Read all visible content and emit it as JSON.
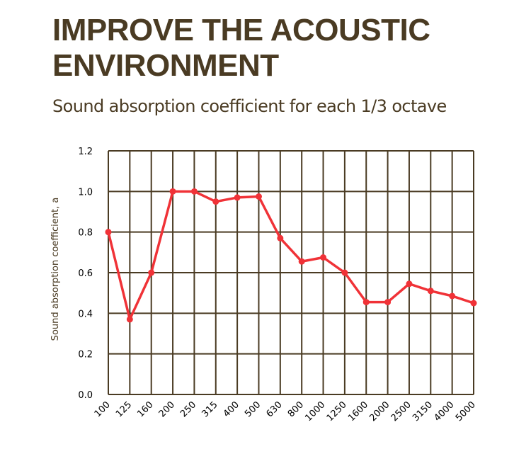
{
  "header": {
    "title_line1": "IMPROVE THE ACOUSTIC",
    "title_line2": "ENVIRONMENT",
    "subtitle": "Sound absorption coefficient for each 1/3 octave"
  },
  "chart_data": {
    "type": "line",
    "ylabel": "Sound absorption coefficient, a",
    "xlabel": "",
    "categories": [
      "100",
      "125",
      "160",
      "200",
      "250",
      "315",
      "400",
      "500",
      "630",
      "800",
      "1000",
      "1250",
      "1600",
      "2000",
      "2500",
      "3150",
      "4000",
      "5000"
    ],
    "series": [
      {
        "values": [
          0.8,
          0.37,
          0.6,
          1.0,
          1.0,
          0.95,
          0.97,
          0.975,
          0.77,
          0.655,
          0.675,
          0.6,
          0.455,
          0.455,
          0.545,
          0.51,
          0.485,
          0.45
        ]
      }
    ],
    "ylim": [
      0,
      1.2
    ],
    "yticks": [
      "0.0",
      "0.2",
      "0.4",
      "0.6",
      "0.8",
      "1.0",
      "1.2"
    ],
    "grid": true,
    "colors": {
      "line": "#f03237",
      "grid": "#4a3b23",
      "text": "#4a3b23"
    }
  }
}
